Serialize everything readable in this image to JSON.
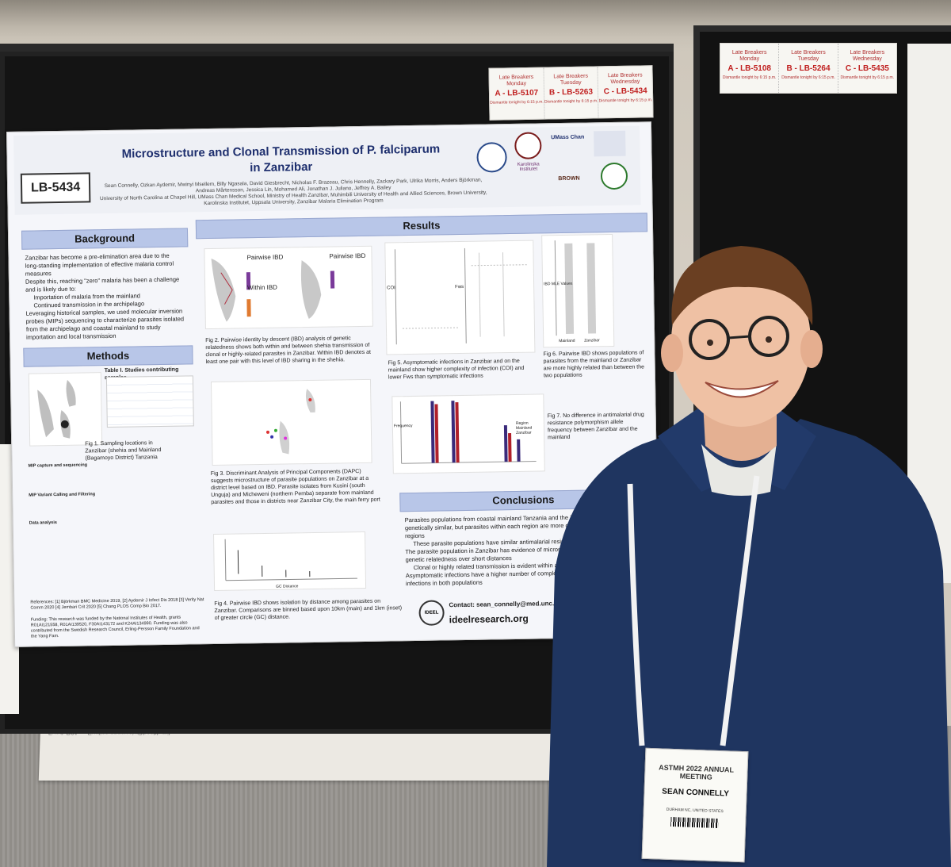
{
  "late_breakers_right": [
    {
      "label": "Late Breakers",
      "day": "Monday",
      "code": "A - LB-5108",
      "note": "Dismantle tonight by 6:15 p.m."
    },
    {
      "label": "Late Breakers",
      "day": "Tuesday",
      "code": "B - LB-5264",
      "note": "Dismantle tonight by 6:15 p.m."
    },
    {
      "label": "Late Breakers",
      "day": "Wednesday",
      "code": "C - LB-5435",
      "note": "Dismantle tonight by 6:15 p.m."
    }
  ],
  "late_breakers_left": [
    {
      "label": "Late Breakers",
      "day": "Monday",
      "code": "A - LB-5107",
      "note": "Dismantle tonight by 6:15 p.m."
    },
    {
      "label": "Late Breakers",
      "day": "Tuesday",
      "code": "B - LB-5263",
      "note": "Dismantle tonight by 6:15 p.m."
    },
    {
      "label": "Late Breakers",
      "day": "Wednesday",
      "code": "C - LB-5434",
      "note": "Dismantle tonight by 6:15 p.m."
    }
  ],
  "poster": {
    "id": "LB-5434",
    "title_line1": "Microstructure and Clonal Transmission of P. falciparum",
    "title_line2": "in Zanzibar",
    "authors": "Sean Connelly, Ozkan Aydemir, Mwinyi Msellem, Billy Ngasala, David Giesbrecht, Nicholas F. Brazeau, Chris Hennelly, Zackary Park, Ulrika Morris, Anders Björkman, Andreas Mårtensson, Jessica Lin, Mohamed Ali, Jonathan J. Juliano, Jeffrey A. Bailey",
    "affiliations": "University of North Carolina at Chapel Hill, UMass Chan Medical School, Ministry of Health Zanzibar, Muhimbili University of Health and Allied Sciences, Brown University, Karolinska Institutet, Uppsala University, Zanzibar Malaria Elimination Program",
    "logos": {
      "umass": "UMass Chan",
      "karolinska": "Karolinska Institutet",
      "brown": "BROWN"
    },
    "background_heading": "Background",
    "background_points": [
      "Zanzibar has become a pre-elimination area due to the long-standing implementation of effective malaria control measures",
      "Despite this, reaching \"zero\" malaria has been a challenge and is likely due to:",
      "Importation of malaria from the mainland",
      "Continued transmission in the archipelago",
      "Leveraging historical samples, we used molecular inversion probes (MIPs) sequencing to characterize parasites isolated from the archipelago and coastal mainland to study importation and local transmission"
    ],
    "methods_heading": "Methods",
    "table_title": "Table I. Studies contributing samples",
    "fig1_caption": "Fig 1. Sampling locations in Zanzibar (shehia and Mainland (Bagamoyo District) Tanzania",
    "methods_subheads": [
      "MIP capture and sequencing",
      "MIP Variant Calling and Filtering",
      "Data analysis"
    ],
    "references": "References: [1] Björkman BMC Medicine 2019, [2] Aydemir J Infect Dis 2018 [3] Verity Nat Comm 2020 [4] Jembari Crit 2020 [5] Chang PLOS Comp Bio 2017.",
    "funding": "Funding: This research was funded by the National Institutes of Health, grants R01AI121558, R01AI139520, F30AI143172 and K24AI134990. Funding was also contributed from the Swedish Research Council, Erling-Persson Family Foundation and the Yang Fam.",
    "results_heading": "Results",
    "fig2_legend": {
      "a": "Pairwise IBD",
      "b": "Within IBD",
      "c": "Pairwise IBD"
    },
    "fig2_caption": "Fig 2. Pairwise identity by descent (IBD) analysis of genetic relatedness shows both within and between shehia transmission of clonal or highly-related parasites in Zanzibar. Within IBD denotes at least one pair with this level of IBD sharing in the shehia.",
    "fig3_caption": "Fig 3. Discriminant Analysis of Principal Components (DAPC) suggests microstructure of parasite populations on Zanzibar at a district level based on IBD. Parasite isolates from Kusini (south Unguja) and Micheweni (northern Pemba) separate from mainland parasites and those in districts near Zanzibar City, the main ferry port",
    "fig4_caption": "Fig 4. Pairwise IBD shows isolation by distance among parasites on Zanzibar. Comparisons are binned based upon 10km (main) and 1km (inset) of greater circle (GC) distance.",
    "fig4_xlabel": "GC Distance",
    "fig5_caption": "Fig 5. Asymptomatic infections in Zanzibar and on the mainland show higher complexity of infection (COI) and lower Fws than symptomatic infections",
    "fig5_ylabels": [
      "COI",
      "Fws"
    ],
    "fig6_caption": "Fig 6. Pairwise IBD shows populations of parasites from the mainland or Zanzibar are more highly related than between the two populations",
    "fig6_ylabel": "IBD MLE Values",
    "fig6_xlabels": [
      "Mainland",
      "Zanzibar"
    ],
    "fig7_caption": "Fig 7. No difference in antimalarial drug resistance polymorphism allele frequency between Zanzibar and the mainland",
    "fig7_legend": [
      "Region",
      "Mainland",
      "Zanzibar"
    ],
    "fig7_ylabel": "Frequency",
    "conclusions_heading": "Conclusions",
    "conclusions": [
      "Parasites populations from coastal mainland Tanzania and the Zanzibar archipelago are genetically similar, but parasites within each region are more closely related than between regions",
      "These parasite populations have similar antimalarial resistance profiles",
      "The parasite population in Zanzibar has evidence of microstructure with rapid decline in genetic relatedness over short distances",
      "Clonal or highly related transmission is evident within and between shehias",
      "Asymptomatic infections have a higher number of complex infections than symptomatic infections in both populations"
    ],
    "contact": "Contact: sean_connelly@med.unc.edu",
    "website": "ideelresearch.org",
    "ideel_logo": "IDEEL"
  },
  "badge": {
    "org": "ASTMH",
    "year": "2022",
    "meeting": "ANNUAL MEETING",
    "name": "SEAN CONNELLY",
    "location": "DURHAM NC, UNITED STATES"
  },
  "colors": {
    "poster_title": "#1e2f6e",
    "section_bar": "#b8c6e8",
    "shirt": "#1f3560",
    "late_breaker_red": "#c02020"
  }
}
